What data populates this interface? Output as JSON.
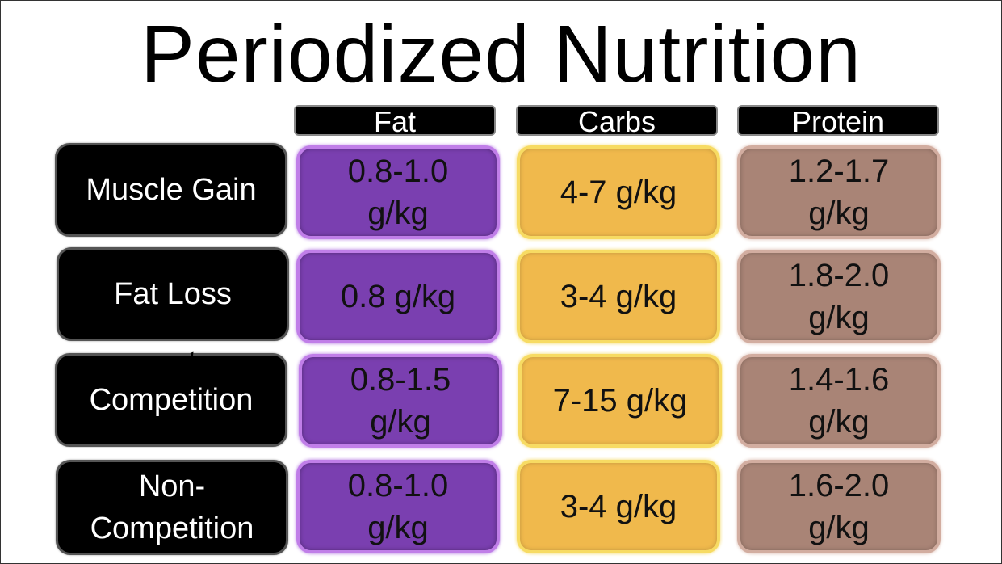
{
  "title": "Periodized Nutrition",
  "columns": [
    "Fat",
    "Carbs",
    "Protein"
  ],
  "rows": [
    {
      "label": "Muscle Gain",
      "fat": "0.8-1.0 g/kg",
      "carbs": "4-7 g/kg",
      "protein": "1.2-1.7 g/kg"
    },
    {
      "label": "Fat Loss",
      "fat": "0.8 g/kg",
      "carbs": "3-4 g/kg",
      "protein": "1.8-2.0 g/kg"
    },
    {
      "label": "Competition",
      "fat": "0.8-1.5 g/kg",
      "carbs": "7-15 g/kg",
      "protein": "1.4-1.6 g/kg"
    },
    {
      "label": "Non-Competition",
      "fat": "0.8-1.0 g/kg",
      "carbs": "3-4 g/kg",
      "protein": "1.6-2.0 g/kg"
    }
  ],
  "colors": {
    "fat": "#7a3fb0",
    "carbs": "#f0b94c",
    "protein": "#a98476",
    "header": "#000000"
  }
}
